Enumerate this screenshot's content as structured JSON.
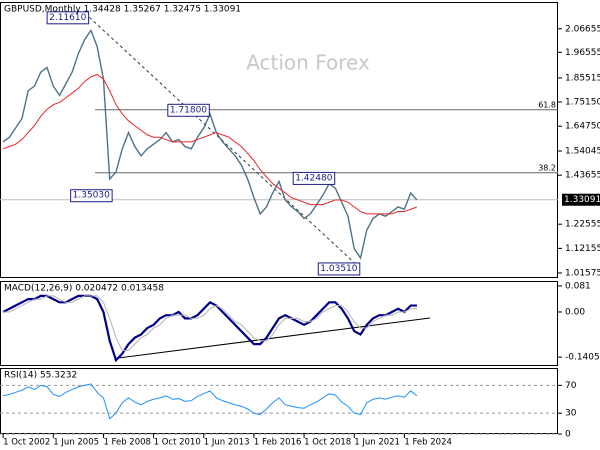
{
  "chart_data": [
    {
      "type": "line",
      "title": "GBPUSD,Monthly  1.34428 1.35267 1.32475 1.33091",
      "watermark": "Action Forex",
      "x": [
        0,
        4,
        8,
        12,
        16,
        20,
        24,
        28,
        32,
        36,
        40,
        44,
        48,
        52,
        56,
        60,
        64,
        68,
        72,
        76,
        80,
        84,
        88,
        92,
        96,
        100,
        104,
        108,
        112,
        116,
        120,
        124,
        128,
        132,
        136,
        140,
        144,
        148,
        152,
        156,
        160,
        164,
        168,
        172,
        176,
        180,
        184,
        188,
        192,
        196,
        200,
        204,
        208,
        212,
        216,
        220,
        224,
        228,
        232,
        236,
        240,
        244,
        248,
        252,
        256,
        260,
        264
      ],
      "xlim": [
        -2,
        354
      ],
      "ylim": [
        0.994,
        2.182
      ],
      "yticks": [
        {
          "value": 2.06655,
          "label": "2.06655"
        },
        {
          "value": 1.96555,
          "label": "1.96555"
        },
        {
          "value": 1.85515,
          "label": "1.85515"
        },
        {
          "value": 1.7515,
          "label": "1.75150"
        },
        {
          "value": 1.6475,
          "label": "1.64750"
        },
        {
          "value": 1.54045,
          "label": "1.54045"
        },
        {
          "value": 1.43655,
          "label": "1.43655"
        },
        {
          "value": 1.22555,
          "label": "1.22555"
        },
        {
          "value": 1.12155,
          "label": "1.12155"
        },
        {
          "value": 1.01575,
          "label": "1.01575"
        }
      ],
      "last_price": {
        "value": 1.33091,
        "label": "1.33091"
      },
      "levels": [
        {
          "value": 1.718,
          "label": "61.8"
        },
        {
          "value": 1.447,
          "label": "38.2"
        }
      ],
      "annotations": [
        {
          "x": 55,
          "value": 2.1161,
          "label": "2.11610"
        },
        {
          "x": 132,
          "value": 1.718,
          "label": "1.71800"
        },
        {
          "x": 70,
          "value": 1.3503,
          "label": "1.35030"
        },
        {
          "x": 212,
          "value": 1.4248,
          "label": "1.42480"
        },
        {
          "x": 228,
          "value": 1.0351,
          "label": "1.03510"
        }
      ],
      "series": [
        {
          "color": "#4d7389",
          "values": [
            1.58,
            1.6,
            1.64,
            1.68,
            1.8,
            1.82,
            1.88,
            1.9,
            1.82,
            1.78,
            1.83,
            1.88,
            1.96,
            2.02,
            2.06,
            1.99,
            1.85,
            1.42,
            1.45,
            1.55,
            1.62,
            1.56,
            1.52,
            1.55,
            1.57,
            1.59,
            1.62,
            1.58,
            1.59,
            1.56,
            1.55,
            1.6,
            1.64,
            1.7,
            1.62,
            1.58,
            1.55,
            1.52,
            1.48,
            1.42,
            1.34,
            1.27,
            1.3,
            1.36,
            1.41,
            1.33,
            1.3,
            1.28,
            1.25,
            1.27,
            1.31,
            1.35,
            1.4,
            1.38,
            1.32,
            1.26,
            1.12,
            1.08,
            1.2,
            1.25,
            1.27,
            1.26,
            1.28,
            1.3,
            1.29,
            1.36,
            1.33
          ]
        },
        {
          "color": "#e8262a",
          "values": [
            1.55,
            1.56,
            1.57,
            1.59,
            1.62,
            1.65,
            1.69,
            1.72,
            1.74,
            1.75,
            1.77,
            1.79,
            1.81,
            1.84,
            1.86,
            1.87,
            1.85,
            1.8,
            1.74,
            1.7,
            1.67,
            1.65,
            1.63,
            1.61,
            1.6,
            1.6,
            1.59,
            1.58,
            1.58,
            1.58,
            1.58,
            1.59,
            1.6,
            1.61,
            1.62,
            1.61,
            1.6,
            1.58,
            1.56,
            1.53,
            1.5,
            1.46,
            1.43,
            1.4,
            1.38,
            1.36,
            1.34,
            1.33,
            1.32,
            1.31,
            1.31,
            1.31,
            1.32,
            1.33,
            1.33,
            1.32,
            1.3,
            1.28,
            1.27,
            1.27,
            1.27,
            1.27,
            1.27,
            1.28,
            1.28,
            1.29,
            1.3
          ]
        }
      ]
    },
    {
      "type": "line",
      "title": "MACD(12,26,9) 0.020472 0.013458",
      "x": [
        0,
        4,
        8,
        12,
        16,
        20,
        24,
        28,
        32,
        36,
        40,
        44,
        48,
        52,
        56,
        60,
        64,
        68,
        72,
        76,
        80,
        84,
        88,
        92,
        96,
        100,
        104,
        108,
        112,
        116,
        120,
        124,
        128,
        132,
        136,
        140,
        144,
        148,
        152,
        156,
        160,
        164,
        168,
        172,
        176,
        180,
        184,
        188,
        192,
        196,
        200,
        204,
        208,
        212,
        216,
        220,
        224,
        228,
        232,
        236,
        240,
        244,
        248,
        252,
        256,
        260,
        264
      ],
      "xlim": [
        -2,
        354
      ],
      "ylim": [
        -0.1682,
        0.0964
      ],
      "yticks": [
        0.081,
        {
          "value": 0,
          "label": "0.00"
        },
        -0.140543
      ],
      "series": [
        {
          "color": "#00008b",
          "values": [
            0.0,
            0.01,
            0.02,
            0.03,
            0.04,
            0.04,
            0.05,
            0.05,
            0.04,
            0.03,
            0.03,
            0.04,
            0.05,
            0.05,
            0.05,
            0.04,
            0.0,
            -0.09,
            -0.15,
            -0.13,
            -0.1,
            -0.08,
            -0.07,
            -0.05,
            -0.04,
            -0.02,
            -0.01,
            -0.01,
            0.0,
            -0.02,
            -0.02,
            -0.01,
            0.01,
            0.03,
            0.02,
            0.0,
            -0.02,
            -0.04,
            -0.06,
            -0.08,
            -0.1,
            -0.1,
            -0.08,
            -0.05,
            -0.02,
            -0.01,
            -0.02,
            -0.03,
            -0.04,
            -0.03,
            -0.01,
            0.01,
            0.03,
            0.03,
            0.01,
            -0.02,
            -0.06,
            -0.07,
            -0.04,
            -0.02,
            -0.01,
            -0.01,
            0.0,
            0.01,
            0.0,
            0.02,
            0.02
          ]
        },
        {
          "color": "#b4b4b4",
          "values": [
            0.0,
            0.0,
            0.01,
            0.02,
            0.03,
            0.04,
            0.04,
            0.05,
            0.05,
            0.04,
            0.03,
            0.03,
            0.04,
            0.05,
            0.05,
            0.05,
            0.03,
            -0.02,
            -0.08,
            -0.12,
            -0.12,
            -0.1,
            -0.08,
            -0.07,
            -0.05,
            -0.04,
            -0.02,
            -0.01,
            -0.01,
            -0.01,
            -0.02,
            -0.02,
            -0.01,
            0.01,
            0.02,
            0.01,
            -0.01,
            -0.03,
            -0.04,
            -0.06,
            -0.08,
            -0.09,
            -0.09,
            -0.07,
            -0.04,
            -0.02,
            -0.02,
            -0.02,
            -0.03,
            -0.03,
            -0.02,
            0.0,
            0.01,
            0.02,
            0.02,
            0.0,
            -0.03,
            -0.05,
            -0.05,
            -0.03,
            -0.02,
            -0.01,
            -0.01,
            0.0,
            0.0,
            0.01,
            0.01
          ]
        }
      ]
    },
    {
      "type": "line",
      "title": "RSI(14) 55.3232",
      "x": [
        0,
        4,
        8,
        12,
        16,
        20,
        24,
        28,
        32,
        36,
        40,
        44,
        48,
        52,
        56,
        60,
        64,
        68,
        72,
        76,
        80,
        84,
        88,
        92,
        96,
        100,
        104,
        108,
        112,
        116,
        120,
        124,
        128,
        132,
        136,
        140,
        144,
        148,
        152,
        156,
        160,
        164,
        168,
        172,
        176,
        180,
        184,
        188,
        192,
        196,
        200,
        204,
        208,
        212,
        216,
        220,
        224,
        228,
        232,
        236,
        240,
        244,
        248,
        252,
        256,
        260,
        264
      ],
      "xlim": [
        -2,
        354
      ],
      "ylim": [
        0,
        95
      ],
      "yticks": [
        70,
        30,
        0
      ],
      "grid": true,
      "xticks": [
        {
          "value": 0,
          "label": "1 Oct 2002"
        },
        {
          "value": 32,
          "label": "1 Jun 2005"
        },
        {
          "value": 64,
          "label": "1 Feb 2008"
        },
        {
          "value": 96,
          "label": "1 Oct 2010"
        },
        {
          "value": 128,
          "label": "1 Jun 2013"
        },
        {
          "value": 160,
          "label": "1 Feb 2016"
        },
        {
          "value": 192,
          "label": "1 Oct 2018"
        },
        {
          "value": 224,
          "label": "1 Jun 2021"
        },
        {
          "value": 256,
          "label": "1 Feb 2024"
        }
      ],
      "series": [
        {
          "color": "#1e90ff",
          "values": [
            55,
            57,
            60,
            63,
            68,
            64,
            70,
            68,
            57,
            54,
            60,
            64,
            68,
            70,
            72,
            60,
            52,
            22,
            30,
            45,
            52,
            46,
            42,
            47,
            50,
            52,
            55,
            50,
            51,
            47,
            48,
            54,
            58,
            62,
            52,
            48,
            45,
            42,
            40,
            36,
            30,
            28,
            36,
            45,
            52,
            42,
            40,
            38,
            37,
            42,
            46,
            52,
            58,
            56,
            46,
            40,
            30,
            28,
            45,
            50,
            52,
            50,
            53,
            55,
            53,
            62,
            55
          ]
        }
      ]
    }
  ]
}
